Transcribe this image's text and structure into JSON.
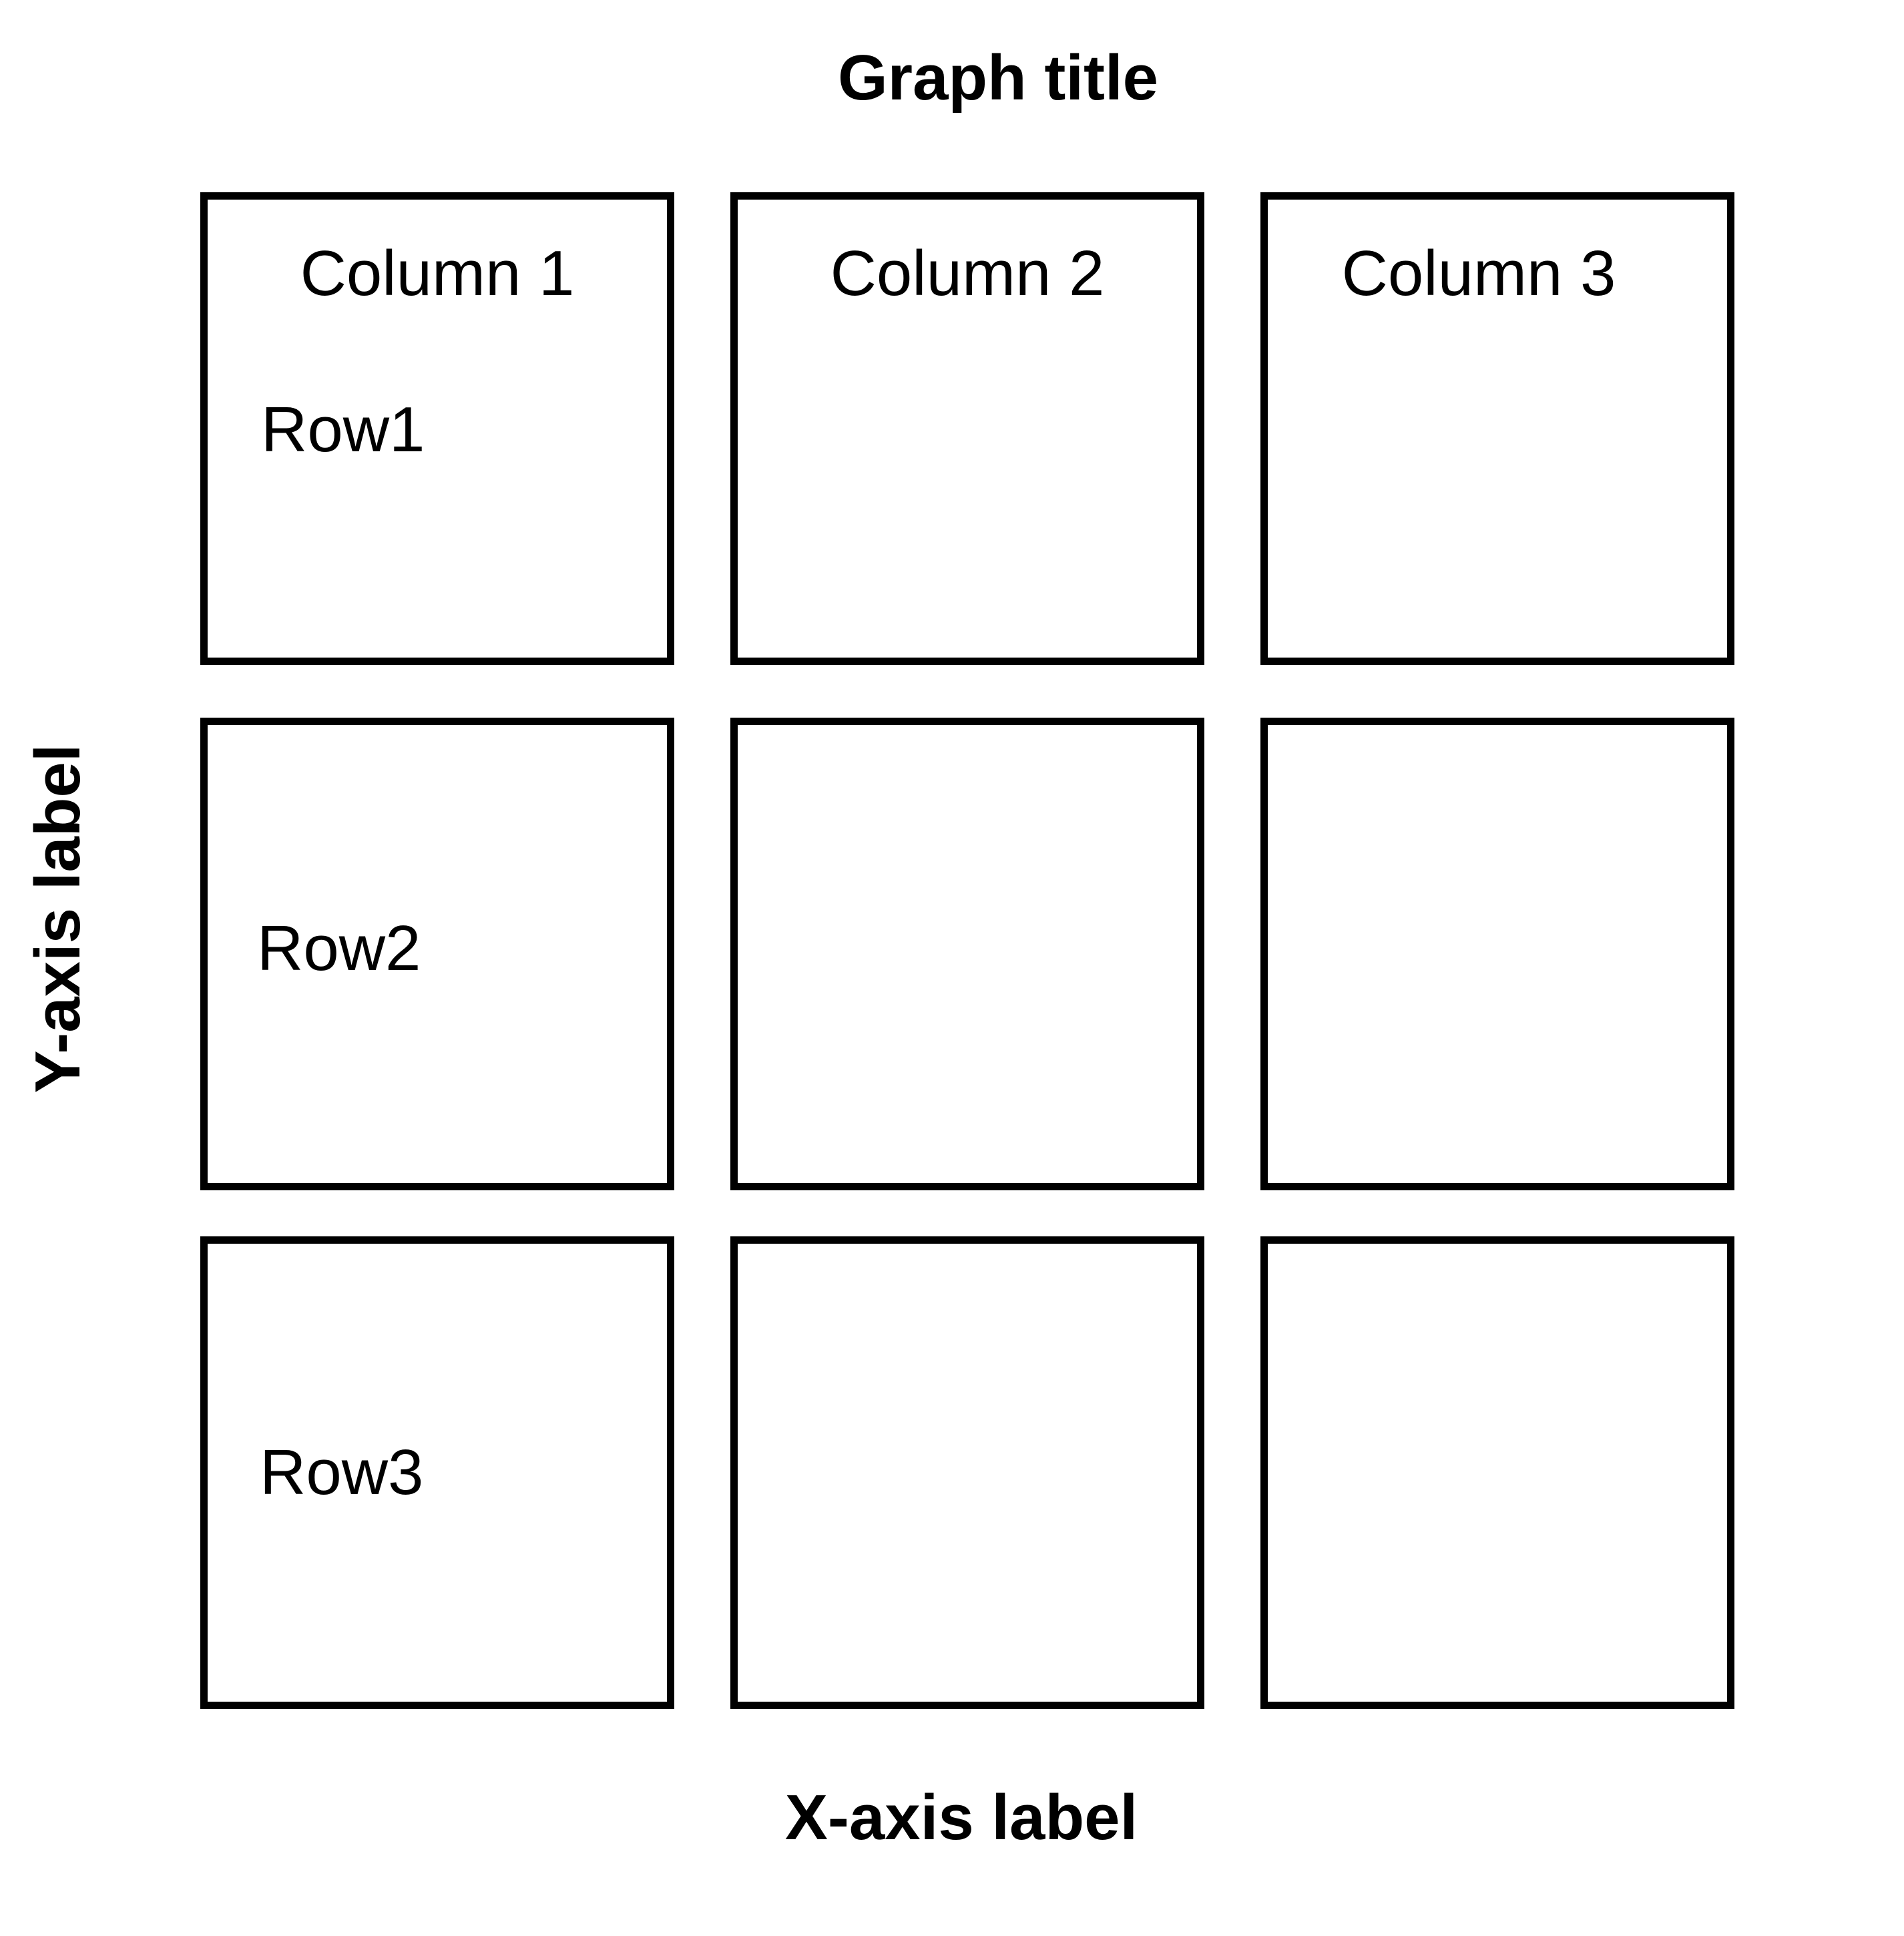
{
  "title": "Graph title",
  "x_axis_label": "X-axis label",
  "y_axis_label": "Y-axis label",
  "columns": [
    "Column 1",
    "Column 2",
    "Column 3"
  ],
  "rows": [
    "Row1",
    "Row2",
    "Row3"
  ]
}
